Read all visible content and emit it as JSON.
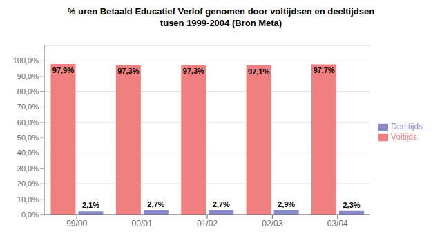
{
  "chart_data": {
    "type": "bar",
    "title": "% uren Betaald Educatief Verlof genomen door voltijdsen en deeltijdsen\ntusen 1999-2004 (Bron Meta)",
    "categories": [
      "99/00",
      "00/01",
      "01/02",
      "02/03",
      "03/04"
    ],
    "series": [
      {
        "name": "Voltijds",
        "color": "#F08080",
        "values": [
          97.9,
          97.3,
          97.3,
          97.1,
          97.7
        ],
        "value_labels": [
          "97,9%",
          "97,3%",
          "97,3%",
          "97,1%",
          "97,7%"
        ]
      },
      {
        "name": "Deeltijds",
        "color": "#8888CC",
        "values": [
          2.1,
          2.7,
          2.7,
          2.9,
          2.3
        ],
        "value_labels": [
          "2,1%",
          "2,7%",
          "2,7%",
          "2,9%",
          "2,3%"
        ]
      }
    ],
    "ylim": [
      0,
      110
    ],
    "yticks": [
      {
        "value": 0,
        "label": "0,0%"
      },
      {
        "value": 10,
        "label": "10,0%"
      },
      {
        "value": 20,
        "label": "20,0%"
      },
      {
        "value": 30,
        "label": "30,0%"
      },
      {
        "value": 40,
        "label": "40,0%"
      },
      {
        "value": 50,
        "label": "50,0%"
      },
      {
        "value": 60,
        "label": "60,0%"
      },
      {
        "value": 70,
        "label": "70,0%"
      },
      {
        "value": 80,
        "label": "80,0%"
      },
      {
        "value": 90,
        "label": "90,0%"
      },
      {
        "value": 100,
        "label": "100,0%"
      }
    ],
    "grid": true,
    "legend": "right",
    "data_labels": true
  }
}
